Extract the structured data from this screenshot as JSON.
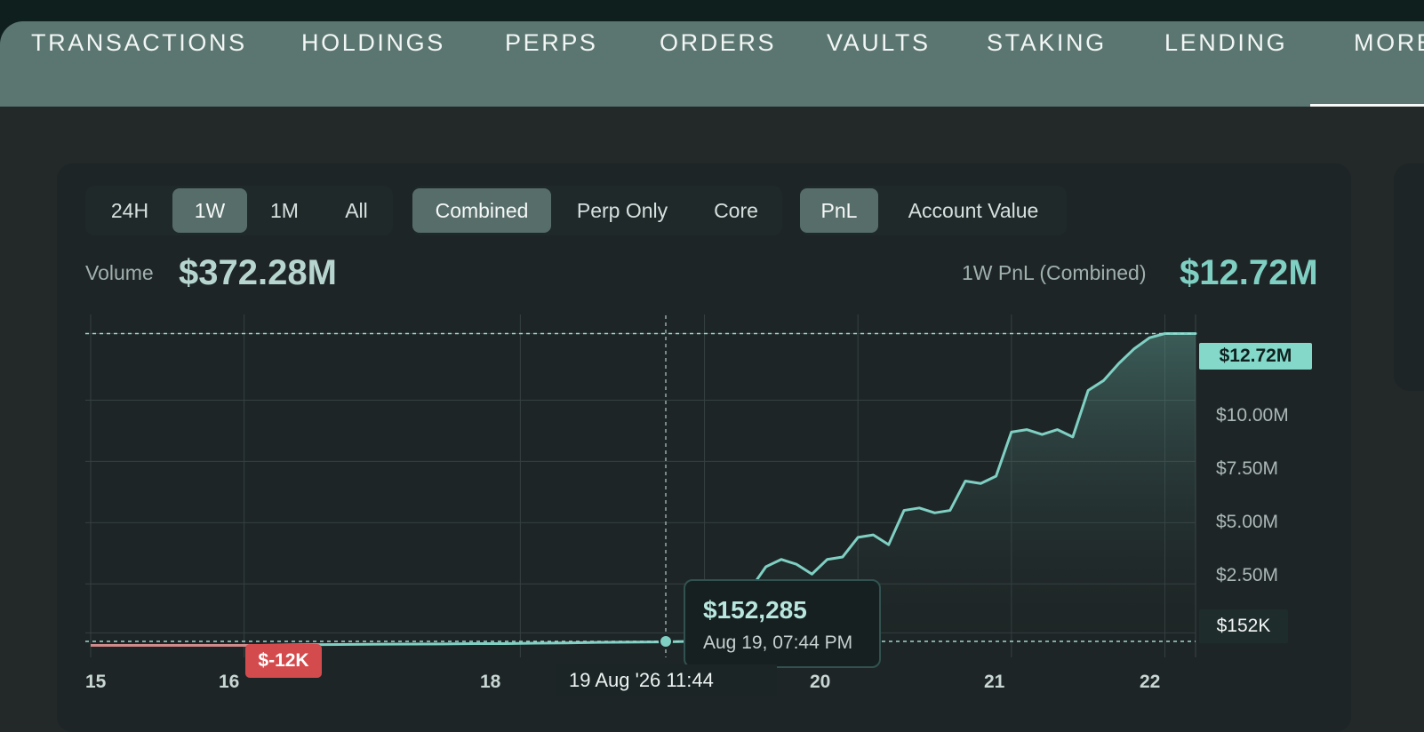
{
  "top_tabs": [
    {
      "label": "TRANSACTIONS"
    },
    {
      "label": "HOLDINGS"
    },
    {
      "label": "PERPS"
    },
    {
      "label": "ORDERS"
    },
    {
      "label": "VAULTS"
    },
    {
      "label": "STAKING"
    },
    {
      "label": "LENDING"
    },
    {
      "label": "MORE"
    }
  ],
  "range_tabs": [
    {
      "label": "24H"
    },
    {
      "label": "1W"
    },
    {
      "label": "1M"
    },
    {
      "label": "All"
    }
  ],
  "mode_tabs": [
    {
      "label": "Combined"
    },
    {
      "label": "Perp Only"
    },
    {
      "label": "Core"
    }
  ],
  "metric_tabs": [
    {
      "label": "PnL"
    },
    {
      "label": "Account Value"
    }
  ],
  "stats": {
    "volume_label": "Volume",
    "volume_value": "$372.28M",
    "pnl_label": "1W PnL (Combined)",
    "pnl_value": "$12.72M"
  },
  "tooltip": {
    "value": "$152,285",
    "time": "Aug 19, 07:44 PM"
  },
  "badges": {
    "negative": "$-12K",
    "top": "$12.72M",
    "current": "$152K"
  },
  "x_axis_hover": "19 Aug '26   11:44",
  "chart_data": {
    "type": "area",
    "x": [
      "15",
      "15.1",
      "15.3",
      "15.5",
      "15.7",
      "15.9",
      "16.1",
      "16.3",
      "16.5",
      "16.7",
      "16.9",
      "17.1",
      "17.3",
      "17.5",
      "17.7",
      "17.9",
      "18.1",
      "18.3",
      "18.5",
      "18.7",
      "18.9",
      "19.0",
      "19.1",
      "19.2",
      "19.3",
      "19.4",
      "19.5",
      "19.6",
      "19.7",
      "19.8",
      "19.9",
      "20.0",
      "20.1",
      "20.2",
      "20.3",
      "20.4",
      "20.5",
      "20.6",
      "20.7",
      "20.8",
      "20.9",
      "21.0",
      "21.1",
      "21.2",
      "21.3",
      "21.4",
      "21.5",
      "21.6",
      "21.7",
      "21.8",
      "21.9",
      "22.0",
      "22.1",
      "22.2"
    ],
    "values": [
      -0.012,
      -0.012,
      -0.012,
      -0.011,
      -0.012,
      -0.011,
      -0.01,
      0.01,
      0.02,
      0.03,
      0.04,
      0.045,
      0.05,
      0.06,
      0.06,
      0.08,
      0.09,
      0.11,
      0.12,
      0.13,
      0.152,
      0.2,
      0.75,
      1.4,
      2.3,
      3.2,
      3.5,
      3.3,
      2.9,
      3.5,
      3.6,
      4.4,
      4.5,
      4.1,
      5.5,
      5.6,
      5.4,
      5.5,
      6.7,
      6.6,
      6.9,
      8.7,
      8.8,
      8.6,
      8.8,
      8.5,
      10.4,
      10.8,
      11.5,
      12.1,
      12.55,
      12.72,
      12.72,
      12.72
    ],
    "title": "1W PnL (Combined)",
    "xlabel": "",
    "ylabel": "",
    "ylim": [
      -0.5,
      13.5
    ],
    "y_ticks": [
      "$2.50M",
      "$5.00M",
      "$7.50M",
      "$10.00M"
    ],
    "x_ticks": [
      "15",
      "16",
      "18",
      "20",
      "21",
      "22"
    ],
    "grid": true,
    "hover": {
      "x": "19 Aug '26 11:44",
      "value": 152285
    }
  },
  "colors": {
    "accent": "#7fd0c3",
    "negative": "#d44b4d"
  }
}
